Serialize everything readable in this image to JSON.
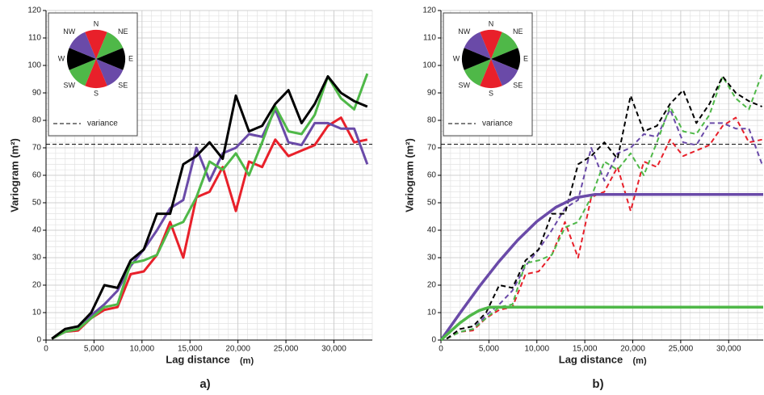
{
  "chart_data": [
    {
      "type": "line",
      "panel_label": "a)",
      "xlabel": "Lag distance",
      "xlabel_unit": "(m)",
      "ylabel": "Variogram (m²)",
      "xlim": [
        0,
        34000
      ],
      "ylim": [
        0,
        120
      ],
      "xticks": [
        0,
        {
          "value": 5000,
          "label": "5,000"
        },
        {
          "value": 10000,
          "label": "10,000"
        },
        {
          "value": 15000,
          "label": "15,000"
        },
        {
          "value": 20000,
          "label": "20,000"
        },
        {
          "value": 25000,
          "label": "25,000"
        },
        {
          "value": 30000,
          "label": "30,000"
        }
      ],
      "yticks": [
        0,
        10,
        20,
        30,
        40,
        50,
        60,
        70,
        80,
        90,
        100,
        110,
        120
      ],
      "grid": true,
      "minor_grid": {
        "x": 1000,
        "y": 2
      },
      "reference": {
        "value": 71.3,
        "label": "variance",
        "color": "#000000"
      },
      "compass": [
        {
          "label": "N",
          "color": "#e8202a"
        },
        {
          "label": "NE",
          "color": "#4fb848"
        },
        {
          "label": "E",
          "color": "#000000"
        },
        {
          "label": "SE",
          "color": "#6a4aa8"
        },
        {
          "label": "S",
          "color": "#e8202a"
        },
        {
          "label": "SW",
          "color": "#4fb848"
        },
        {
          "label": "W",
          "color": "#000000"
        },
        {
          "label": "NW",
          "color": "#6a4aa8"
        }
      ],
      "series": [
        {
          "color": "#e8202a",
          "dashed": false,
          "x": [
            600,
            1970,
            3340,
            4710,
            6080,
            7450,
            8820,
            10190,
            11560,
            12930,
            14300,
            15670,
            17040,
            18410,
            19780,
            21150,
            22520,
            23890,
            25260,
            26630,
            28000,
            29370,
            30740,
            32110,
            33480
          ],
          "values": [
            0.5,
            3,
            3.5,
            8,
            11,
            12,
            24,
            25,
            31,
            43,
            30,
            52,
            54,
            63,
            47,
            65,
            63,
            73,
            67,
            69,
            71,
            78,
            81,
            72,
            73
          ]
        },
        {
          "color": "#6a4aa8",
          "dashed": false,
          "x": [
            600,
            1970,
            3340,
            4710,
            6080,
            7450,
            8820,
            10190,
            11560,
            12930,
            14300,
            15670,
            17040,
            18410,
            19780,
            21150,
            22520,
            23890,
            25260,
            26630,
            28000,
            29370,
            30740,
            32110,
            33480
          ],
          "values": [
            0.5,
            3,
            4,
            9,
            13,
            18,
            27,
            33,
            40,
            48,
            51,
            70,
            58,
            68,
            70,
            75,
            74,
            84,
            72,
            71,
            79,
            79,
            77,
            77,
            64
          ]
        },
        {
          "color": "#4fb848",
          "dashed": false,
          "x": [
            600,
            1970,
            3340,
            4710,
            6080,
            7450,
            8820,
            10190,
            11560,
            12930,
            14300,
            15670,
            17040,
            18410,
            19780,
            21150,
            22520,
            23890,
            25260,
            26630,
            28000,
            29370,
            30740,
            32110,
            33480
          ],
          "values": [
            0.5,
            3,
            4,
            8,
            12,
            13,
            28,
            29,
            31,
            41,
            43,
            52,
            65,
            62,
            68,
            60,
            72,
            85,
            76,
            75,
            82,
            96,
            88,
            84,
            97
          ]
        },
        {
          "color": "#000000",
          "dashed": false,
          "x": [
            600,
            1970,
            3340,
            4710,
            6080,
            7450,
            8820,
            10190,
            11560,
            12930,
            14300,
            15670,
            17040,
            18410,
            19780,
            21150,
            22520,
            23890,
            25260,
            26630,
            28000,
            29370,
            30740,
            32110,
            33480
          ],
          "values": [
            0.5,
            4,
            5,
            10,
            20,
            19,
            29,
            33,
            46,
            46,
            64,
            67,
            72,
            66,
            89,
            76,
            78,
            86,
            91,
            79,
            86,
            96,
            90,
            87,
            85
          ]
        }
      ]
    },
    {
      "type": "line",
      "panel_label": "b)",
      "xlabel": "Lag distance",
      "xlabel_unit": "(m)",
      "ylabel": "Variogram (m²)",
      "xlim": [
        0,
        33600
      ],
      "ylim": [
        0,
        120
      ],
      "xticks": [
        0,
        {
          "value": 5000,
          "label": "5,000"
        },
        {
          "value": 10000,
          "label": "10,000"
        },
        {
          "value": 15000,
          "label": "15,000"
        },
        {
          "value": 20000,
          "label": "20,000"
        },
        {
          "value": 25000,
          "label": "25,000"
        },
        {
          "value": 30000,
          "label": "30,000"
        }
      ],
      "yticks": [
        0,
        10,
        20,
        30,
        40,
        50,
        60,
        70,
        80,
        90,
        100,
        110,
        120
      ],
      "grid": true,
      "minor_grid": {
        "x": 1000,
        "y": 2
      },
      "reference": {
        "value": 71.3,
        "label": "variance",
        "color": "#000000"
      },
      "compass": [
        {
          "label": "N",
          "color": "#e8202a"
        },
        {
          "label": "NE",
          "color": "#4fb848"
        },
        {
          "label": "E",
          "color": "#000000"
        },
        {
          "label": "SE",
          "color": "#6a4aa8"
        },
        {
          "label": "S",
          "color": "#e8202a"
        },
        {
          "label": "SW",
          "color": "#4fb848"
        },
        {
          "label": "W",
          "color": "#000000"
        },
        {
          "label": "NW",
          "color": "#6a4aa8"
        }
      ],
      "series": [
        {
          "color": "#e8202a",
          "dashed": true,
          "x": [
            600,
            1970,
            3340,
            4710,
            6080,
            7450,
            8820,
            10190,
            11560,
            12930,
            14300,
            15670,
            17040,
            18410,
            19780,
            21150,
            22520,
            23890,
            25260,
            26630,
            28000,
            29370,
            30740,
            32110,
            33480
          ],
          "values": [
            0.5,
            3,
            3.5,
            8,
            11,
            12,
            24,
            25,
            31,
            43,
            30,
            52,
            54,
            63,
            47,
            65,
            63,
            73,
            67,
            69,
            71,
            78,
            81,
            72,
            73
          ]
        },
        {
          "color": "#6a4aa8",
          "dashed": true,
          "x": [
            600,
            1970,
            3340,
            4710,
            6080,
            7450,
            8820,
            10190,
            11560,
            12930,
            14300,
            15670,
            17040,
            18410,
            19780,
            21150,
            22520,
            23890,
            25260,
            26630,
            28000,
            29370,
            30740,
            32110,
            33480
          ],
          "values": [
            0.5,
            3,
            4,
            9,
            13,
            18,
            27,
            33,
            40,
            48,
            51,
            70,
            58,
            68,
            70,
            75,
            74,
            84,
            72,
            71,
            79,
            79,
            77,
            77,
            64
          ]
        },
        {
          "color": "#4fb848",
          "dashed": true,
          "x": [
            600,
            1970,
            3340,
            4710,
            6080,
            7450,
            8820,
            10190,
            11560,
            12930,
            14300,
            15670,
            17040,
            18410,
            19780,
            21150,
            22520,
            23890,
            25260,
            26630,
            28000,
            29370,
            30740,
            32110,
            33480
          ],
          "values": [
            0.5,
            3,
            4,
            8,
            12,
            13,
            28,
            29,
            31,
            41,
            43,
            52,
            65,
            62,
            68,
            60,
            72,
            85,
            76,
            75,
            82,
            96,
            88,
            84,
            97
          ]
        },
        {
          "color": "#000000",
          "dashed": true,
          "x": [
            600,
            1970,
            3340,
            4710,
            6080,
            7450,
            8820,
            10190,
            11560,
            12930,
            14300,
            15670,
            17040,
            18410,
            19780,
            21150,
            22520,
            23890,
            25260,
            26630,
            28000,
            29370,
            30740,
            32110,
            33480
          ],
          "values": [
            0.5,
            4,
            5,
            10,
            20,
            19,
            29,
            33,
            46,
            46,
            64,
            67,
            72,
            66,
            89,
            76,
            78,
            86,
            91,
            79,
            86,
            96,
            90,
            87,
            85
          ]
        },
        {
          "color": "#6a4aa8",
          "dashed": false,
          "model": true,
          "x": [
            0,
            2000,
            4000,
            6000,
            8000,
            10000,
            12000,
            14000,
            16000,
            33600
          ],
          "values": [
            0,
            9.9,
            19.5,
            28.4,
            36.4,
            43.2,
            48.4,
            51.8,
            53,
            53
          ]
        },
        {
          "color": "#4fb848",
          "dashed": false,
          "model": true,
          "x": [
            0,
            1000,
            2000,
            3000,
            4000,
            5000,
            5500,
            33600
          ],
          "values": [
            0,
            3.2,
            6.3,
            8.8,
            10.8,
            11.9,
            12,
            12
          ]
        }
      ]
    }
  ]
}
